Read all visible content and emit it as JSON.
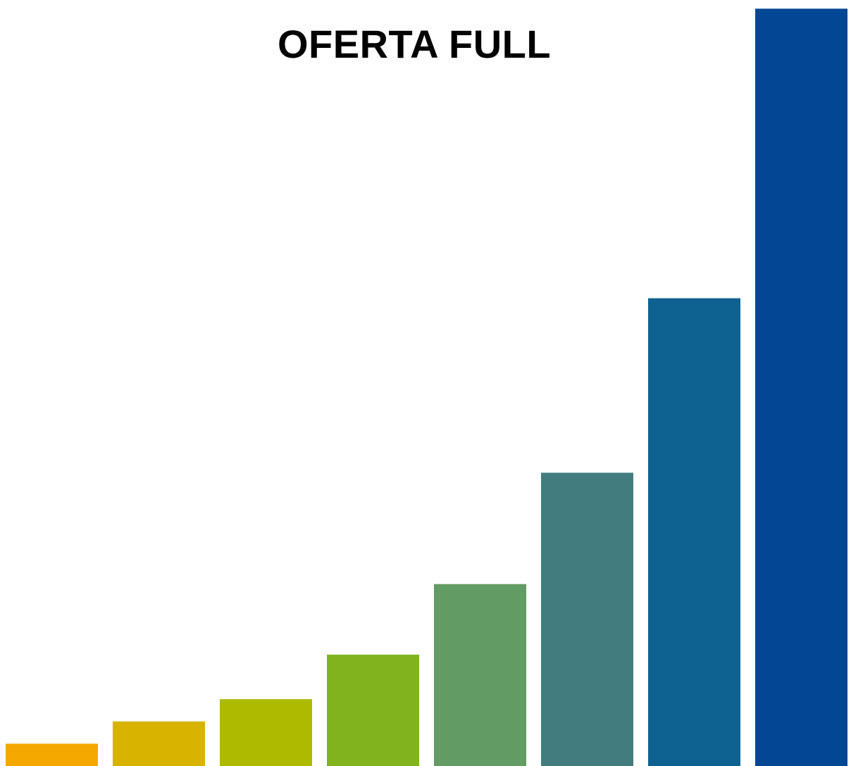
{
  "chart_data": {
    "type": "bar",
    "title": "OFERTA FULL",
    "xlabel": "",
    "ylabel": "",
    "grid": false,
    "legend": "none",
    "categories": [
      "",
      "",
      "",
      "",
      "",
      "",
      "",
      ""
    ],
    "values": [
      3,
      6,
      9,
      15,
      24.5,
      39.5,
      63,
      102
    ],
    "ylim": [
      0,
      102.6
    ],
    "colors": [
      "#F5A800",
      "#D8B400",
      "#AEBA00",
      "#7FB41E",
      "#629B63",
      "#437C7E",
      "#0E6291",
      "#034694"
    ]
  }
}
